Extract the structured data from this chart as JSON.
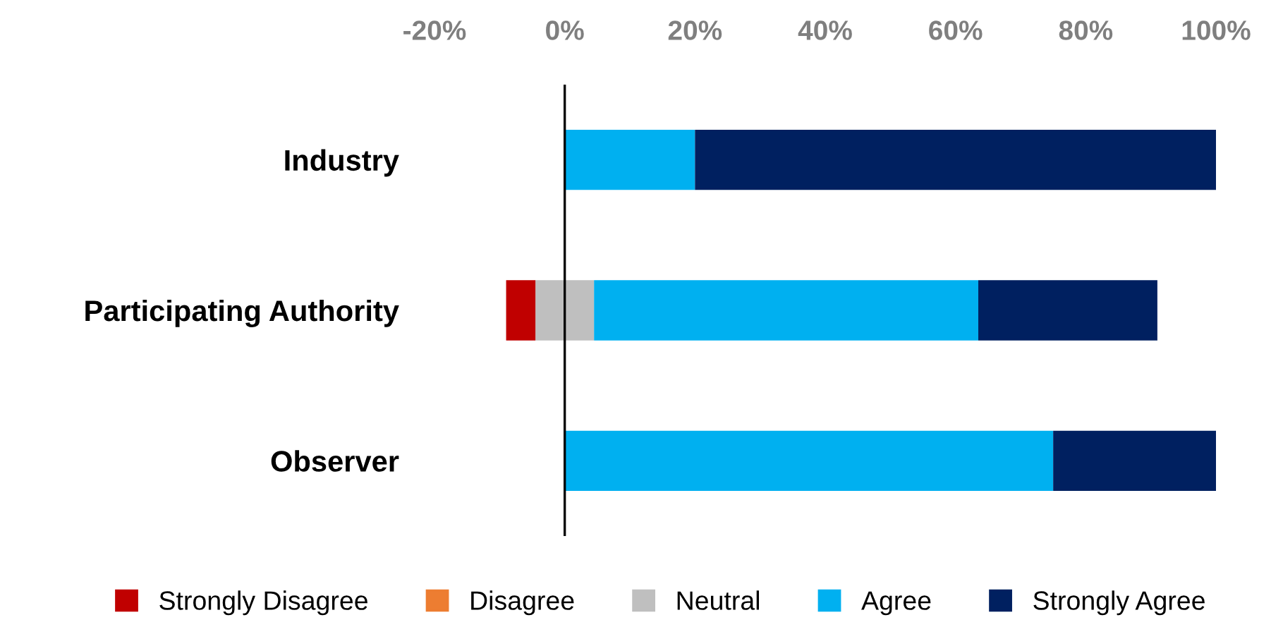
{
  "chart_data": {
    "type": "bar",
    "orientation": "horizontal",
    "stacked": true,
    "categories": [
      "Industry",
      "Participating Authority",
      "Observer"
    ],
    "series": [
      {
        "color": "#bfbfbf",
        "values": [
          0,
          -4.5,
          0
        ]
      },
      {
        "name": "Strongly Disagree",
        "color": "#c00000",
        "values": [
          0,
          -4.5,
          0
        ]
      },
      {
        "name": "Disagree",
        "color": "#ed7d31",
        "values": [
          0,
          0,
          0
        ]
      },
      {
        "name": "Neutral",
        "color": "#bfbfbf",
        "values": [
          0,
          4.5,
          0
        ]
      },
      {
        "name": "Agree",
        "color": "#00b0f0",
        "values": [
          20,
          59,
          75
        ]
      },
      {
        "name": "Strongly Agree",
        "color": "#002060",
        "values": [
          80,
          27.5,
          25
        ]
      }
    ],
    "xlim": [
      -20,
      100
    ],
    "xticks": [
      {
        "value": -20,
        "label": "-20%"
      },
      {
        "value": 0,
        "label": "0%"
      },
      {
        "value": 20,
        "label": "20%"
      },
      {
        "value": 40,
        "label": "40%"
      },
      {
        "value": 60,
        "label": "60%"
      },
      {
        "value": 80,
        "label": "80%"
      },
      {
        "value": 100,
        "label": "100%"
      }
    ],
    "ref_lines": [
      {
        "axis": "x",
        "value": 0,
        "color": "#000000"
      }
    ],
    "legend": "bottom"
  }
}
